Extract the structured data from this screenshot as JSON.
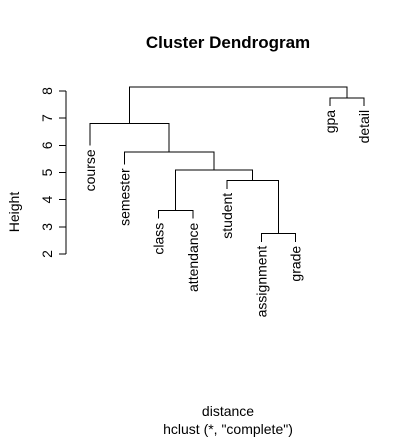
{
  "chart_data": {
    "type": "dendrogram",
    "title": "Cluster Dendrogram",
    "xlabel": "distance",
    "sub": "hclust (*, \"complete\")",
    "ylabel": "Height",
    "yticks": [
      2,
      3,
      4,
      5,
      6,
      7,
      8
    ],
    "leaves": [
      "course",
      "semester",
      "class",
      "attendance",
      "student",
      "assignment",
      "grade",
      "gpa",
      "detail"
    ],
    "merges": [
      {
        "left": "class",
        "right": "attendance",
        "height": 3.6
      },
      {
        "left": "assignment",
        "right": "grade",
        "height": 2.75
      },
      {
        "left": "student",
        "right": [
          "assignment",
          "grade"
        ],
        "height": 4.7
      },
      {
        "left": [
          "class",
          "attendance"
        ],
        "right": [
          "student",
          "assignment",
          "grade"
        ],
        "height": 5.1
      },
      {
        "left": "semester",
        "right": [
          "class",
          "attendance",
          "student",
          "assignment",
          "grade"
        ],
        "height": 5.75
      },
      {
        "left": "course",
        "right": [
          "semester",
          "class",
          "attendance",
          "student",
          "assignment",
          "grade"
        ],
        "height": 6.8
      },
      {
        "left": "gpa",
        "right": "detail",
        "height": 7.75
      },
      {
        "left": [
          "course",
          "semester",
          "class",
          "attendance",
          "student",
          "assignment",
          "grade"
        ],
        "right": [
          "gpa",
          "detail"
        ],
        "height": 8.15
      }
    ],
    "leaf_label_tops": {
      "course": 6.0,
      "semester": 5.3,
      "class": 3.3,
      "attendance": 3.3,
      "student": 4.4,
      "assignment": 2.45,
      "grade": 2.45,
      "gpa": 7.45,
      "detail": 7.45
    }
  }
}
